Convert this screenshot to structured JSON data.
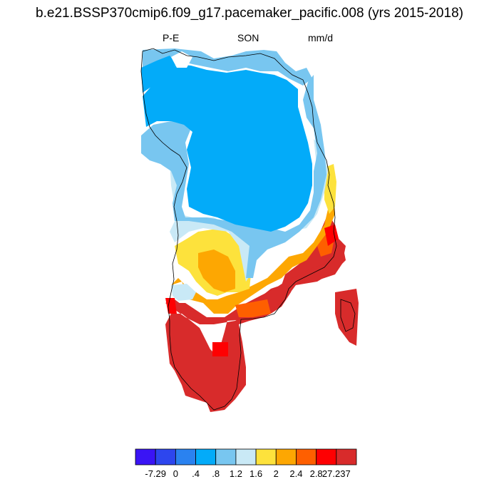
{
  "title": "b.e21.BSSP370cmip6.f09_g17.pacemaker_pacific.008 (yrs 2015-2018)",
  "variable": "P-E",
  "season": "SON",
  "units": "mm/d",
  "colorbar": {
    "colors": [
      "#3a14f5",
      "#2d46ee",
      "#2a82f0",
      "#03abf9",
      "#78c6f0",
      "#c9e9f6",
      "#fde23c",
      "#fda702",
      "#fe5f00",
      "#fe0002",
      "#d82b2b"
    ],
    "labels": [
      "-7.29",
      "0",
      ".4",
      ".8",
      "1.2",
      "1.6",
      "2",
      "2.4",
      "2.8",
      "27.237"
    ]
  },
  "map_fields": {
    "strong_blue": "#03abf9",
    "light_blue": "#78c6f0",
    "pale_blue": "#c9e9f6",
    "yellow": "#fde23c",
    "orange": "#fda702",
    "dark_orange": "#fe5f00",
    "red": "#fe0002",
    "dark_red": "#d82b2b"
  }
}
